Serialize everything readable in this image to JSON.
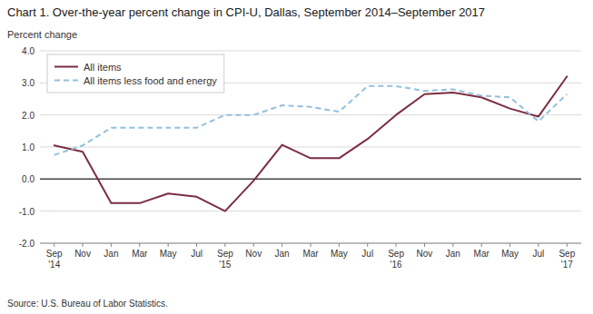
{
  "chart_data": {
    "type": "line",
    "title": "Chart 1. Over-the-year percent change in CPI-U, Dallas, September 2014–September 2017",
    "ylabel": "Percent change",
    "source": "Source: U.S. Bureau of Labor Statistics.",
    "categories": [
      "Sep\n'14",
      "Nov",
      "Jan",
      "Mar",
      "May",
      "Jul",
      "Sep\n'15",
      "Nov",
      "Jan",
      "Mar",
      "May",
      "Jul",
      "Sep\n'16",
      "Nov",
      "Jan",
      "Mar",
      "May",
      "Jul",
      "Sep\n'17"
    ],
    "series": [
      {
        "name": "All items",
        "color": "#7B2D42",
        "line_style": "solid",
        "values": [
          1.05,
          0.85,
          -0.75,
          -0.75,
          -0.45,
          -0.55,
          -1.0,
          -0.05,
          1.07,
          0.65,
          0.65,
          1.25,
          2.0,
          2.65,
          2.7,
          2.55,
          2.2,
          1.95,
          3.2
        ]
      },
      {
        "name": "All items less food and energy",
        "color": "#92C0DC",
        "line_style": "dashed",
        "values": [
          0.75,
          1.05,
          1.6,
          1.6,
          1.6,
          1.6,
          2.0,
          2.0,
          2.3,
          2.25,
          2.1,
          2.9,
          2.9,
          2.75,
          2.8,
          2.6,
          2.55,
          1.8,
          2.65
        ]
      }
    ],
    "ylim": [
      -2.0,
      4.0
    ],
    "yticks": [
      {
        "value": -2.0,
        "label": "-2.0"
      },
      {
        "value": -1.0,
        "label": "-1.0"
      },
      {
        "value": 0.0,
        "label": "0.0"
      },
      {
        "value": 1.0,
        "label": "1.0"
      },
      {
        "value": 2.0,
        "label": "2.0"
      },
      {
        "value": 3.0,
        "label": "3.0"
      },
      {
        "value": 4.0,
        "label": "4.0"
      }
    ],
    "grid": true,
    "legend": "upper left"
  }
}
